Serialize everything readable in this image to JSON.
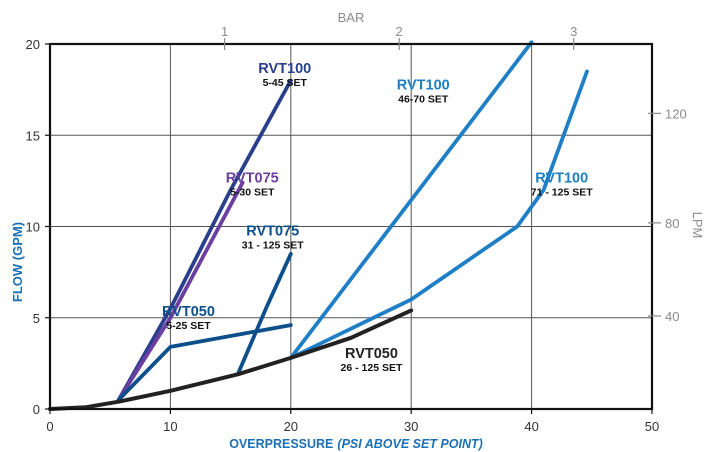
{
  "chart_data": {
    "type": "line",
    "xlabel_main": "OVERPRESSURE",
    "xlabel_sub": "(PSI ABOVE SET POINT)",
    "ylabel": "FLOW (GPM)",
    "top_axis_label": "BAR",
    "right_axis_label": "LPM",
    "xlim": [
      0,
      50
    ],
    "ylim": [
      0,
      20
    ],
    "x_ticks": [
      0,
      10,
      20,
      30,
      40,
      50
    ],
    "y_ticks": [
      0,
      5,
      10,
      15,
      20
    ],
    "top_ticks": [
      {
        "label": "1",
        "psi": 14.5
      },
      {
        "label": "2",
        "psi": 29
      },
      {
        "label": "3",
        "psi": 43.5
      }
    ],
    "right_ticks": [
      {
        "label": "40",
        "gpm": 5.1
      },
      {
        "label": "80",
        "gpm": 10.2
      },
      {
        "label": "120",
        "gpm": 16.2
      }
    ],
    "grid": true,
    "colors": {
      "navy": "#2a3f8c",
      "purple": "#6a3fa0",
      "darkblue": "#0d4f8b",
      "lightblue": "#1f7fc6",
      "black": "#222222",
      "axis_label": "#1a6fb5",
      "secondary": "#8a8a8a"
    },
    "series": [
      {
        "name": "RVT100",
        "sub": "5-45 SET",
        "color": "navy",
        "points": [
          [
            5.7,
            0.5
          ],
          [
            10,
            5.5
          ],
          [
            15,
            12
          ],
          [
            20,
            18
          ]
        ],
        "label_x": 19.5,
        "label_y": 18.4
      },
      {
        "name": "RVT075",
        "sub": "5-30 SET",
        "color": "purple",
        "points": [
          [
            5.7,
            0.5
          ],
          [
            10,
            5
          ],
          [
            16,
            12.4
          ]
        ],
        "label_x": 16.8,
        "label_y": 12.4
      },
      {
        "name": "RVT075",
        "sub": "31 - 125 SET",
        "color": "darkblue",
        "points": [
          [
            15.6,
            1.9
          ],
          [
            18,
            5.6
          ],
          [
            20,
            8.5
          ]
        ],
        "label_x": 18.5,
        "label_y": 9.5
      },
      {
        "name": "RVT050",
        "sub": "5-25 SET",
        "color": "darkblue",
        "points": [
          [
            5.7,
            0.5
          ],
          [
            10,
            3.4
          ],
          [
            20,
            4.6
          ]
        ],
        "label_x": 11.5,
        "label_y": 5.1
      },
      {
        "name": "RVT100",
        "sub": "46-70 SET",
        "color": "lightblue",
        "points": [
          [
            20,
            2.8
          ],
          [
            40,
            20.1
          ]
        ],
        "label_x": 31.0,
        "label_y": 17.5
      },
      {
        "name": "RVT100",
        "sub": "71 - 125 SET",
        "color": "lightblue",
        "points": [
          [
            20,
            2.8
          ],
          [
            30,
            6
          ],
          [
            38.8,
            10
          ],
          [
            41,
            12
          ],
          [
            44.6,
            18.5
          ]
        ],
        "label_x": 42.5,
        "label_y": 12.4
      },
      {
        "name": "RVT050",
        "sub": "26 - 125 SET",
        "color": "black",
        "points": [
          [
            0,
            0
          ],
          [
            3,
            0.1
          ],
          [
            5.7,
            0.4
          ],
          [
            10,
            1
          ],
          [
            15.6,
            1.9
          ],
          [
            20,
            2.8
          ],
          [
            25,
            3.9
          ],
          [
            30,
            5.4
          ]
        ],
        "label_x": 26.7,
        "label_y": 2.8
      }
    ]
  }
}
